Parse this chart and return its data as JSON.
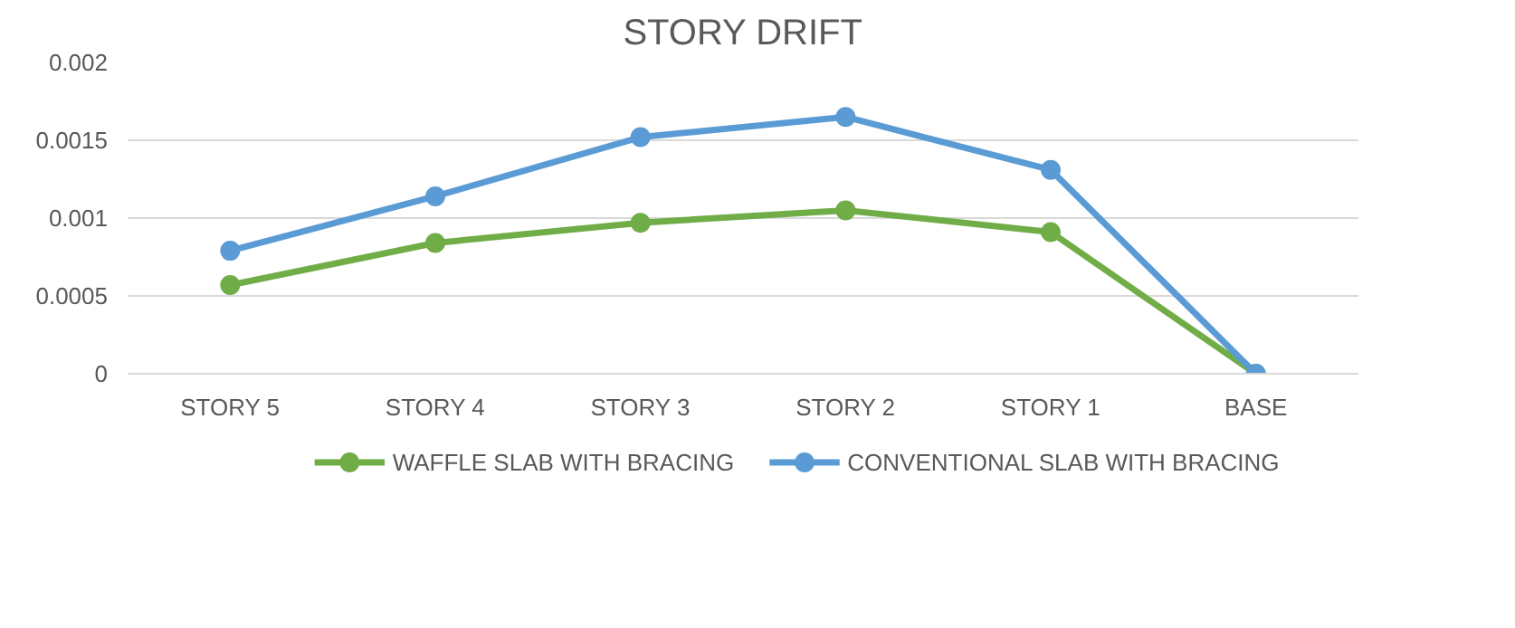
{
  "chart_data": {
    "type": "line",
    "title": "STORY DRIFT",
    "categories": [
      "STORY 5",
      "STORY 4",
      "STORY 3",
      "STORY 2",
      "STORY 1",
      "BASE"
    ],
    "series": [
      {
        "name": "WAFFLE SLAB WITH BRACING",
        "color": "#70ad47",
        "values": [
          0.00057,
          0.00084,
          0.00097,
          0.00105,
          0.00091,
          0
        ]
      },
      {
        "name": "CONVENTIONAL SLAB WITH BRACING",
        "color": "#5b9bd5",
        "values": [
          0.00079,
          0.00114,
          0.00152,
          0.00165,
          0.00131,
          0
        ]
      }
    ],
    "ylim": [
      0,
      0.002
    ],
    "yticks": [
      0,
      0.0005,
      0.001,
      0.0015,
      0.002
    ],
    "grid": "y",
    "legend": "bottom",
    "marker": "circle",
    "line_style": "solid"
  }
}
